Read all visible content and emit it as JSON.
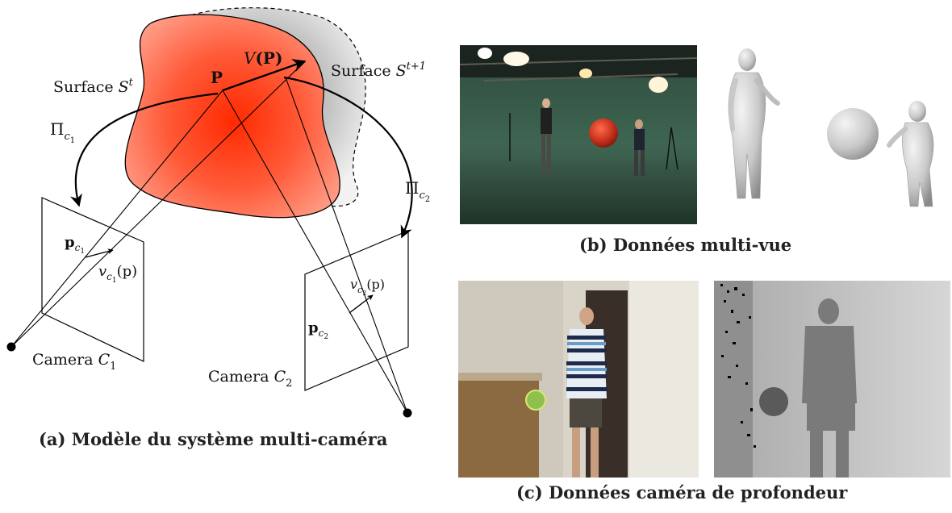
{
  "diagram": {
    "surface_t_prefix": "Surface ",
    "surface_t_symbol": "S",
    "surface_t_sup": "t",
    "surface_t1_prefix": "Surface ",
    "surface_t1_symbol": "S",
    "surface_t1_sup": "t+1",
    "point_P": "P",
    "motion_V": "V",
    "motion_V_arg": "(P)",
    "proj_c1_symbol": "Π",
    "proj_c1_sub": "c",
    "proj_c1_subsub": "1",
    "proj_c2_symbol": "Π",
    "proj_c2_sub": "c",
    "proj_c2_subsub": "2",
    "p_c1": "p",
    "p_c1_sub": "c",
    "p_c1_subsub": "1",
    "v_c1": "v",
    "v_c1_sub": "c",
    "v_c1_subsub": "1",
    "v_c1_arg": "(p)",
    "p_c2": "p",
    "p_c2_sub": "c",
    "p_c2_subsub": "2",
    "v_c2": "v",
    "v_c2_sub": "c",
    "v_c2_subsub": "2",
    "v_c2_arg": "(p)",
    "camera1_prefix": "Camera ",
    "camera1_symbol": "C",
    "camera1_sub": "1",
    "camera2_prefix": "Camera ",
    "camera2_symbol": "C",
    "camera2_sub": "2"
  },
  "captions": {
    "a": "(a) Modèle du système multi-caméra",
    "b": "(b) Données multi-vue",
    "c": "(c) Données caméra de profondeur"
  }
}
